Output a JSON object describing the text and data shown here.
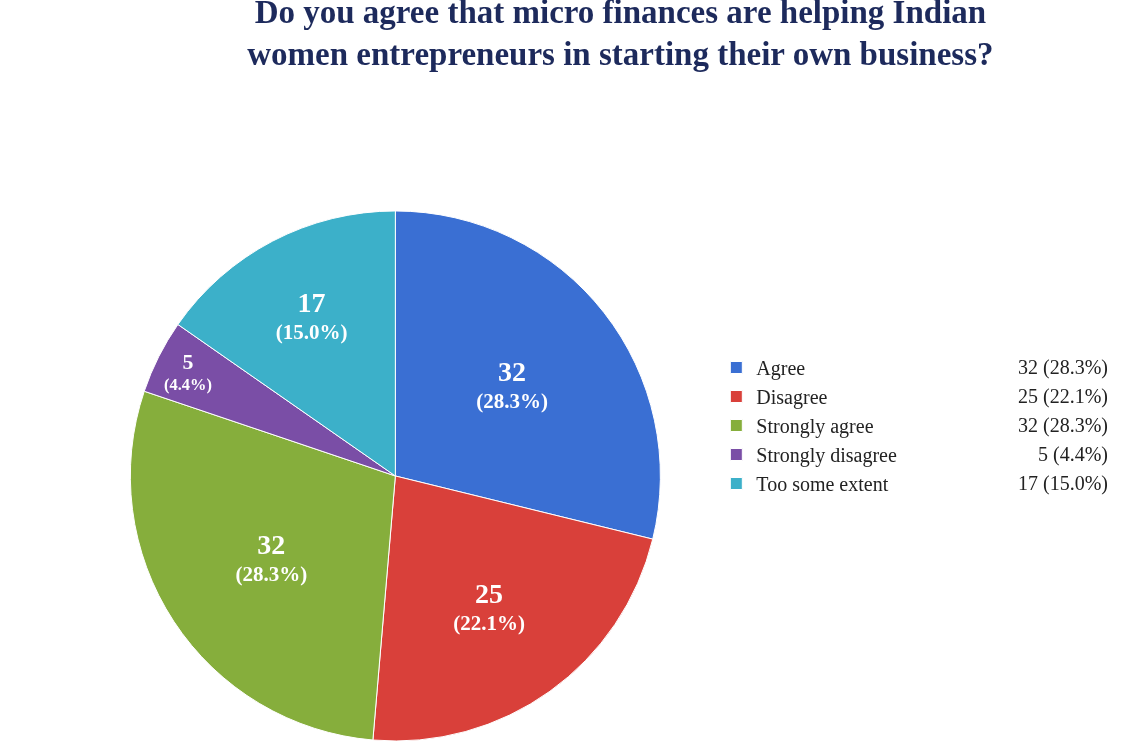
{
  "chart_data": {
    "type": "pie",
    "title": "Do you agree that micro finances are helping Indian women entrepreneurs in starting their own business?",
    "categories": [
      "Agree",
      "Disagree",
      "Strongly agree",
      "Strongly disagree",
      "Too some extent"
    ],
    "values": [
      32,
      25,
      32,
      5,
      17
    ],
    "colors": [
      "#3a6fd3",
      "#d9403a",
      "#86ae3c",
      "#7a4ea6",
      "#3cb0c9"
    ],
    "value_labels": [
      "32 (28.3%)",
      "25 (22.1%)",
      "32 (28.3%)",
      "5 (4.4%)",
      "17 (15.0%)"
    ],
    "legend": "right"
  }
}
